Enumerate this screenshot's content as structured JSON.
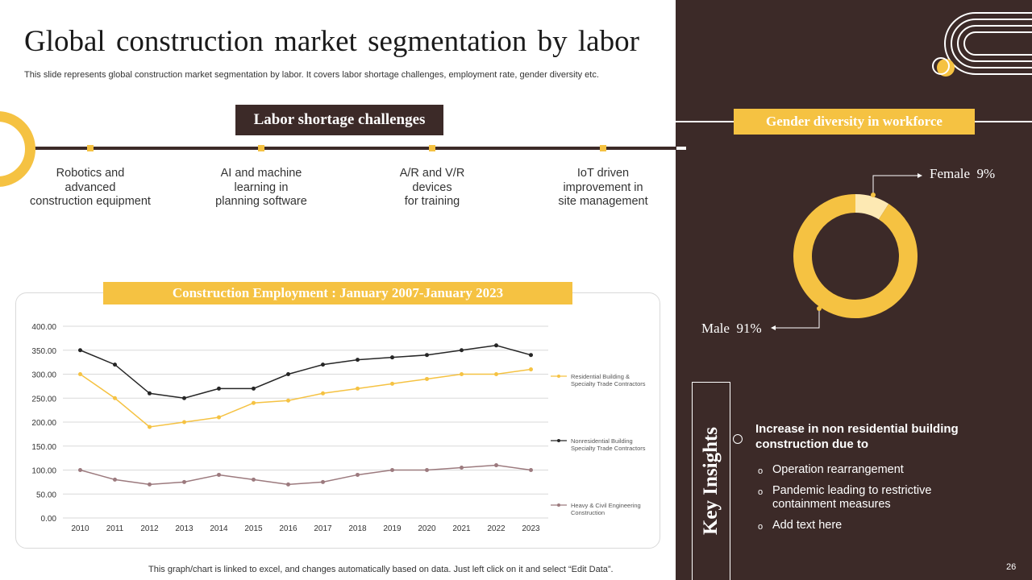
{
  "slide": {
    "title": "Global construction market segmentation by labor",
    "subtitle": "This slide represents global construction market segmentation by labor. It covers labor shortage challenges, employment rate, gender diversity etc.",
    "page_number": "26",
    "chart_note": "This graph/chart is linked to excel,  and changes automatically based on data. Just left click on it and select “Edit Data”."
  },
  "labor_shortage": {
    "title": "Labor shortage challenges",
    "items": [
      "Robotics and\nadvanced\nconstruction equipment",
      "AI and machine\nlearning in\nplanning software",
      "A/R and V/R\ndevices\nfor training",
      "IoT driven\nimprovement in\nsite management"
    ]
  },
  "gender": {
    "title": "Gender diversity in workforce",
    "female_label": "Female",
    "female_value": "9%",
    "male_label": "Male",
    "male_value": "91%"
  },
  "key_insights": {
    "title": "Key Insights",
    "heading": "Increase in non residential building construction due to",
    "items": [
      "Operation rearrangement",
      "Pandemic leading to restrictive containment measures",
      "Add text here"
    ]
  },
  "colors": {
    "dark": "#3c2a28",
    "accent": "#f5c242",
    "light_accent": "#fde9b3",
    "series_residential": "#f5c242",
    "series_nonresidential": "#262626",
    "series_heavy": "#9c7a7e"
  },
  "chart_data": [
    {
      "type": "line",
      "title": "Construction Employment : January 2007-January 2023",
      "xlabel": "",
      "ylabel": "",
      "x": [
        "2010",
        "2011",
        "2012",
        "2013",
        "2014",
        "2015",
        "2016",
        "2017",
        "2018",
        "2019",
        "2020",
        "2021",
        "2022",
        "2023"
      ],
      "ylim": [
        0,
        400
      ],
      "yticks": [
        "0.00",
        "50.00",
        "100.00",
        "150.00",
        "200.00",
        "250.00",
        "300.00",
        "350.00",
        "400.00"
      ],
      "grid": true,
      "legend": "right",
      "series": [
        {
          "name": "Residential Building & Specialty Trade Contractors",
          "legend_lines": [
            "Residential Building &",
            "Specialty Trade Contractors"
          ],
          "values": [
            300,
            250,
            190,
            200,
            210,
            240,
            245,
            260,
            270,
            280,
            290,
            300,
            300,
            310
          ]
        },
        {
          "name": "Nonresidential Building Specialty Trade Contractors",
          "legend_lines": [
            "Nonresidential Building",
            "Specialty Trade Contractors"
          ],
          "values": [
            350,
            320,
            260,
            250,
            270,
            270,
            300,
            320,
            330,
            335,
            340,
            350,
            360,
            340
          ]
        },
        {
          "name": "Heavy & Civil Engineering Construction",
          "legend_lines": [
            "Heavy & Civil Engineering",
            "Construction"
          ],
          "values": [
            100,
            80,
            70,
            75,
            90,
            80,
            70,
            75,
            90,
            100,
            100,
            105,
            110,
            100
          ]
        }
      ]
    },
    {
      "type": "pie",
      "title": "Gender diversity in workforce",
      "donut": true,
      "categories": [
        "Female",
        "Male"
      ],
      "values": [
        9,
        91
      ]
    }
  ]
}
